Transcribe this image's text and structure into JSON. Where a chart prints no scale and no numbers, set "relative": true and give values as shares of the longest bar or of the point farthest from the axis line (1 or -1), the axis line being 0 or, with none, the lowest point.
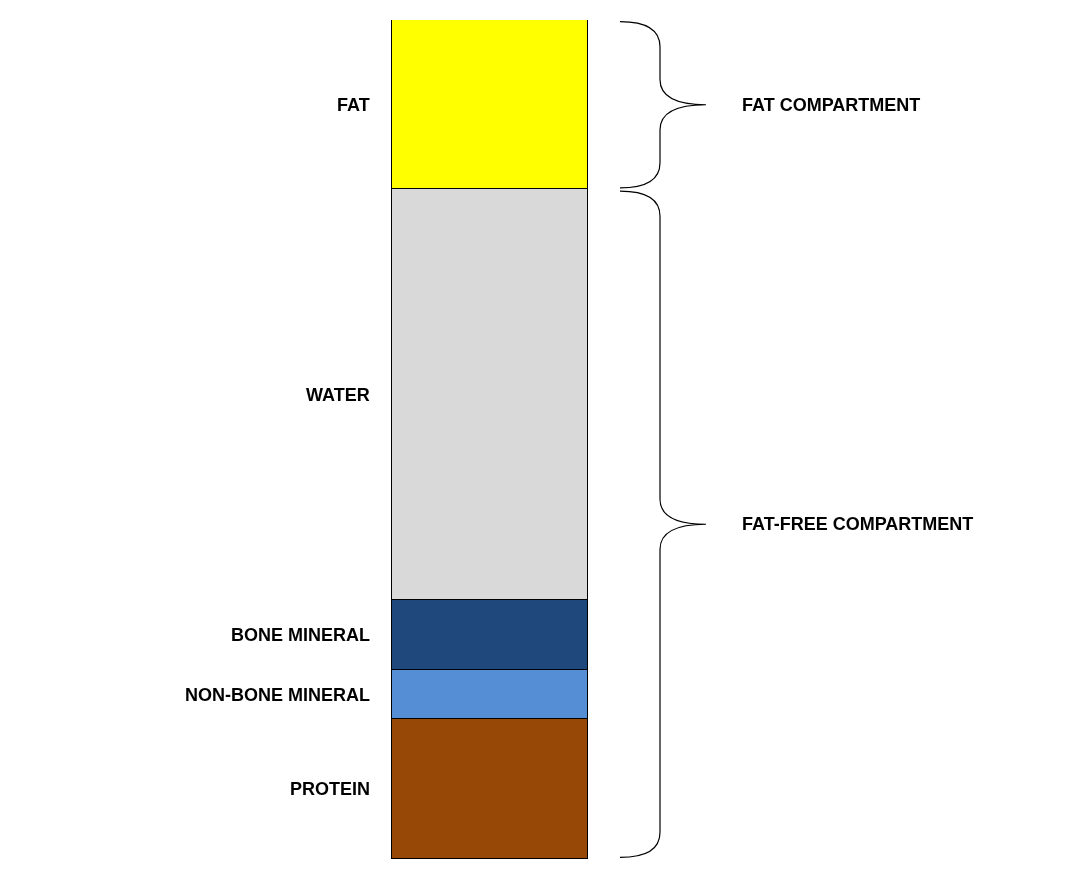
{
  "chart_data": {
    "type": "bar",
    "stacked": true,
    "relative": true,
    "categories": [
      null
    ],
    "series": [
      {
        "name": "PROTEIN",
        "color": "#974706",
        "values": [
          0.167
        ]
      },
      {
        "name": "NON-BONE MINERAL",
        "color": "#558ed5",
        "values": [
          0.058
        ]
      },
      {
        "name": "BONE MINERAL",
        "color": "#1f497d",
        "values": [
          0.084
        ]
      },
      {
        "name": "WATER",
        "color": "#d9d9d9",
        "values": [
          0.489
        ]
      },
      {
        "name": "FAT",
        "color": "#ffff00",
        "values": [
          0.202
        ]
      }
    ],
    "annotations": [
      "FAT COMPARTMENT",
      "FAT-FREE COMPARTMENT"
    ],
    "legend": false
  }
}
